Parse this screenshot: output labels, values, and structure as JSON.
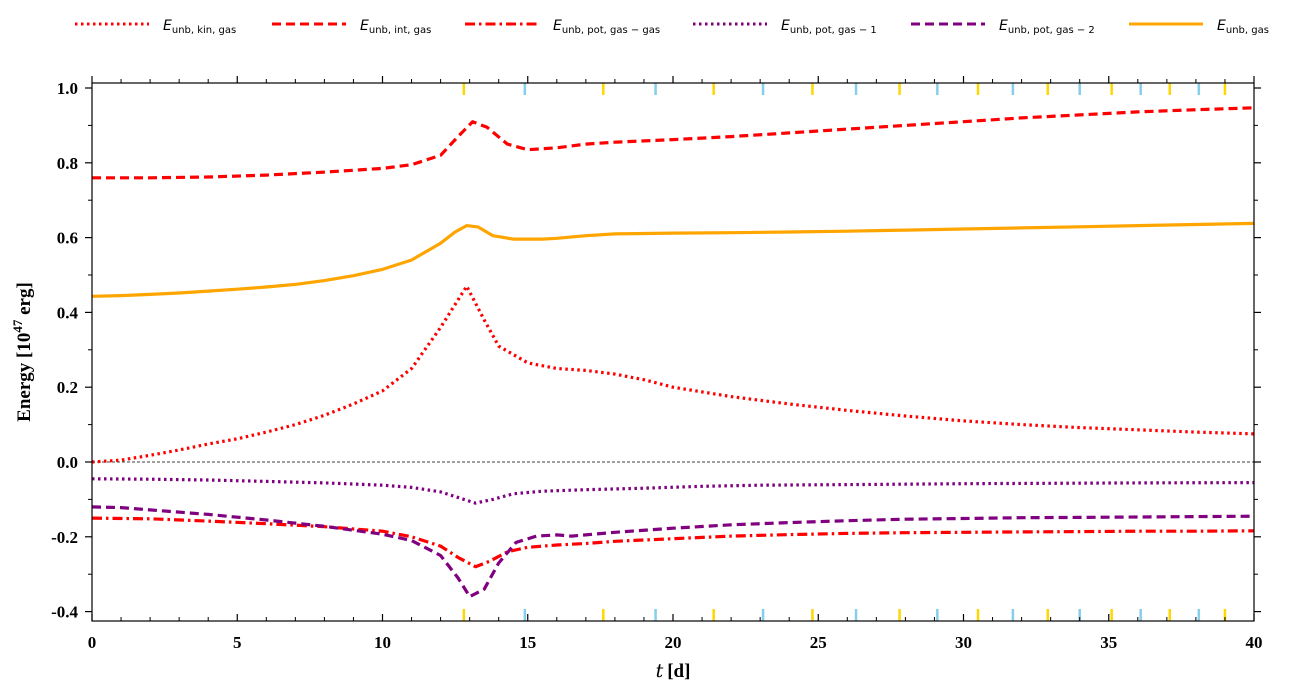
{
  "chart_data": {
    "type": "line",
    "xlabel": {
      "main": "t",
      "unit": "[d]"
    },
    "ylabel": {
      "main": "Energy [10",
      "exp": "47",
      "unit": " erg]"
    },
    "xlim": [
      0,
      40
    ],
    "ylim": [
      -0.43,
      1.02
    ],
    "x_ticks": [
      0,
      5,
      10,
      15,
      20,
      25,
      30,
      35,
      40
    ],
    "x_tick_labels": [
      "0",
      "5",
      "10",
      "15",
      "20",
      "25",
      "30",
      "35",
      "40"
    ],
    "y_ticks": [
      -0.4,
      -0.2,
      0.0,
      0.2,
      0.4,
      0.6,
      0.8,
      1.0
    ],
    "y_tick_labels": [
      "-0.4",
      "-0.2",
      "0.0",
      "0.2",
      "0.4",
      "0.6",
      "0.8",
      "1.0"
    ],
    "zero_line": true,
    "grid": false,
    "legend_position": "top",
    "series": [
      {
        "name": "E",
        "name_sub": "unb, kin, gas",
        "color": "#ff0000",
        "dash": "dotted",
        "points": [
          [
            0,
            0.0
          ],
          [
            1,
            0.005
          ],
          [
            2,
            0.018
          ],
          [
            3,
            0.032
          ],
          [
            4,
            0.048
          ],
          [
            5,
            0.062
          ],
          [
            6,
            0.08
          ],
          [
            7,
            0.1
          ],
          [
            8,
            0.125
          ],
          [
            9,
            0.155
          ],
          [
            10,
            0.19
          ],
          [
            11,
            0.25
          ],
          [
            12,
            0.36
          ],
          [
            12.9,
            0.47
          ],
          [
            13.5,
            0.38
          ],
          [
            14,
            0.31
          ],
          [
            15,
            0.265
          ],
          [
            16,
            0.25
          ],
          [
            17,
            0.245
          ],
          [
            18,
            0.235
          ],
          [
            19,
            0.22
          ],
          [
            20,
            0.2
          ],
          [
            22,
            0.175
          ],
          [
            24,
            0.155
          ],
          [
            26,
            0.138
          ],
          [
            28,
            0.123
          ],
          [
            30,
            0.11
          ],
          [
            32,
            0.1
          ],
          [
            34,
            0.092
          ],
          [
            36,
            0.086
          ],
          [
            38,
            0.08
          ],
          [
            40,
            0.075
          ]
        ]
      },
      {
        "name": "E",
        "name_sub": "unb, int, gas",
        "color": "#ff0000",
        "dash": "dashed",
        "points": [
          [
            0,
            0.76
          ],
          [
            2,
            0.76
          ],
          [
            4,
            0.762
          ],
          [
            6,
            0.767
          ],
          [
            8,
            0.775
          ],
          [
            10,
            0.785
          ],
          [
            11,
            0.795
          ],
          [
            12,
            0.82
          ],
          [
            12.6,
            0.87
          ],
          [
            13.1,
            0.91
          ],
          [
            13.6,
            0.895
          ],
          [
            14.3,
            0.85
          ],
          [
            15,
            0.835
          ],
          [
            16,
            0.84
          ],
          [
            17,
            0.85
          ],
          [
            18,
            0.855
          ],
          [
            20,
            0.862
          ],
          [
            22,
            0.87
          ],
          [
            24,
            0.88
          ],
          [
            26,
            0.89
          ],
          [
            28,
            0.9
          ],
          [
            30,
            0.91
          ],
          [
            32,
            0.92
          ],
          [
            34,
            0.928
          ],
          [
            36,
            0.936
          ],
          [
            38,
            0.942
          ],
          [
            40,
            0.947
          ]
        ]
      },
      {
        "name": "E",
        "name_sub": "unb, pot, gas − gas",
        "color": "#ff0000",
        "dash": "dashdot",
        "points": [
          [
            0,
            -0.15
          ],
          [
            2,
            -0.152
          ],
          [
            4,
            -0.158
          ],
          [
            6,
            -0.165
          ],
          [
            8,
            -0.173
          ],
          [
            10,
            -0.185
          ],
          [
            11,
            -0.2
          ],
          [
            12,
            -0.225
          ],
          [
            12.6,
            -0.255
          ],
          [
            13.2,
            -0.28
          ],
          [
            13.7,
            -0.265
          ],
          [
            14.3,
            -0.24
          ],
          [
            15,
            -0.228
          ],
          [
            16,
            -0.222
          ],
          [
            17,
            -0.218
          ],
          [
            18,
            -0.212
          ],
          [
            20,
            -0.205
          ],
          [
            22,
            -0.198
          ],
          [
            24,
            -0.194
          ],
          [
            26,
            -0.191
          ],
          [
            28,
            -0.189
          ],
          [
            30,
            -0.188
          ],
          [
            32,
            -0.187
          ],
          [
            34,
            -0.186
          ],
          [
            36,
            -0.185
          ],
          [
            38,
            -0.185
          ],
          [
            40,
            -0.184
          ]
        ]
      },
      {
        "name": "E",
        "name_sub": "unb, pot, gas − 1",
        "color": "#800080",
        "dash": "dotted",
        "points": [
          [
            0,
            -0.045
          ],
          [
            2,
            -0.046
          ],
          [
            4,
            -0.048
          ],
          [
            6,
            -0.052
          ],
          [
            8,
            -0.056
          ],
          [
            10,
            -0.062
          ],
          [
            11,
            -0.068
          ],
          [
            12,
            -0.08
          ],
          [
            12.6,
            -0.095
          ],
          [
            13.2,
            -0.11
          ],
          [
            13.8,
            -0.1
          ],
          [
            14.5,
            -0.085
          ],
          [
            15.5,
            -0.078
          ],
          [
            17,
            -0.074
          ],
          [
            19,
            -0.07
          ],
          [
            21,
            -0.065
          ],
          [
            23,
            -0.062
          ],
          [
            25,
            -0.061
          ],
          [
            27,
            -0.06
          ],
          [
            30,
            -0.058
          ],
          [
            33,
            -0.057
          ],
          [
            36,
            -0.056
          ],
          [
            40,
            -0.055
          ]
        ]
      },
      {
        "name": "E",
        "name_sub": "unb, pot, gas − 2",
        "color": "#800080",
        "dash": "dashed",
        "points": [
          [
            0,
            -0.12
          ],
          [
            1,
            -0.122
          ],
          [
            2,
            -0.128
          ],
          [
            4,
            -0.14
          ],
          [
            6,
            -0.155
          ],
          [
            8,
            -0.172
          ],
          [
            10,
            -0.193
          ],
          [
            11,
            -0.21
          ],
          [
            12,
            -0.25
          ],
          [
            12.6,
            -0.31
          ],
          [
            13.0,
            -0.36
          ],
          [
            13.5,
            -0.34
          ],
          [
            14,
            -0.27
          ],
          [
            14.6,
            -0.215
          ],
          [
            15.3,
            -0.198
          ],
          [
            16,
            -0.195
          ],
          [
            16.5,
            -0.198
          ],
          [
            17,
            -0.195
          ],
          [
            18,
            -0.188
          ],
          [
            20,
            -0.177
          ],
          [
            22,
            -0.168
          ],
          [
            24,
            -0.162
          ],
          [
            26,
            -0.157
          ],
          [
            28,
            -0.153
          ],
          [
            30,
            -0.151
          ],
          [
            32,
            -0.149
          ],
          [
            34,
            -0.148
          ],
          [
            36,
            -0.147
          ],
          [
            38,
            -0.146
          ],
          [
            40,
            -0.145
          ]
        ]
      },
      {
        "name": "E",
        "name_sub": "unb, gas",
        "color": "#ffa500",
        "dash": "solid",
        "points": [
          [
            0,
            0.443
          ],
          [
            1,
            0.445
          ],
          [
            2,
            0.448
          ],
          [
            3,
            0.452
          ],
          [
            4,
            0.457
          ],
          [
            5,
            0.462
          ],
          [
            6,
            0.468
          ],
          [
            7,
            0.475
          ],
          [
            8,
            0.485
          ],
          [
            9,
            0.498
          ],
          [
            10,
            0.515
          ],
          [
            11,
            0.54
          ],
          [
            12,
            0.585
          ],
          [
            12.5,
            0.615
          ],
          [
            12.9,
            0.632
          ],
          [
            13.3,
            0.628
          ],
          [
            13.8,
            0.605
          ],
          [
            14.5,
            0.596
          ],
          [
            15.5,
            0.596
          ],
          [
            16,
            0.598
          ],
          [
            17,
            0.605
          ],
          [
            18,
            0.61
          ],
          [
            20,
            0.612
          ],
          [
            22,
            0.613
          ],
          [
            24,
            0.615
          ],
          [
            26,
            0.617
          ],
          [
            28,
            0.62
          ],
          [
            30,
            0.623
          ],
          [
            32,
            0.626
          ],
          [
            34,
            0.629
          ],
          [
            36,
            0.632
          ],
          [
            38,
            0.635
          ],
          [
            40,
            0.638
          ]
        ]
      }
    ],
    "event_markers": {
      "gold": {
        "color": "#ffd700",
        "x": [
          12.8,
          17.6,
          21.4,
          24.8,
          27.8,
          30.5,
          32.9,
          35.1,
          37.1,
          39.0
        ]
      },
      "skyblue": {
        "color": "#87ceeb",
        "x": [
          14.9,
          19.4,
          23.1,
          26.3,
          29.1,
          31.7,
          34.0,
          36.1,
          38.1
        ]
      }
    }
  }
}
